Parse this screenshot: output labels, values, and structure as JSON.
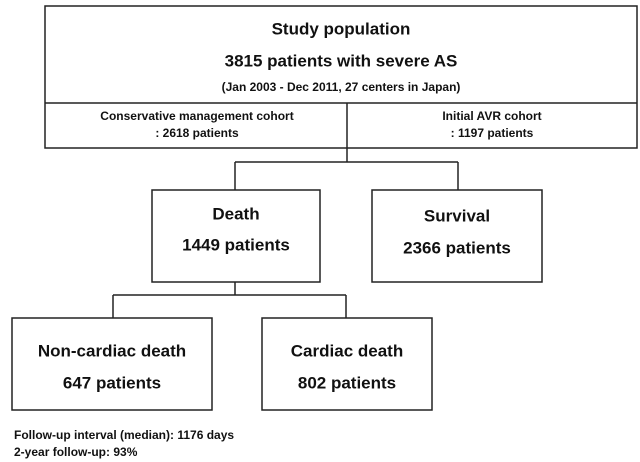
{
  "header": {
    "title": "Study population",
    "subtitle": "3815 patients with severe AS",
    "period": "(Jan 2003 - Dec 2011, 27 centers in Japan)"
  },
  "cohorts": [
    {
      "label": "Conservative management cohort",
      "count": ": 2618 patients"
    },
    {
      "label": "Initial AVR cohort",
      "count": ": 1197 patients"
    }
  ],
  "outcomes": [
    {
      "label": "Death",
      "count": "1449 patients"
    },
    {
      "label": "Survival",
      "count": "2366 patients"
    }
  ],
  "death_causes": [
    {
      "label": "Non-cardiac death",
      "count": "647 patients"
    },
    {
      "label": "Cardiac death",
      "count": "802 patients"
    }
  ],
  "footnotes": [
    "Follow-up interval (median): 1176 days",
    "2-year follow-up: 93%"
  ]
}
